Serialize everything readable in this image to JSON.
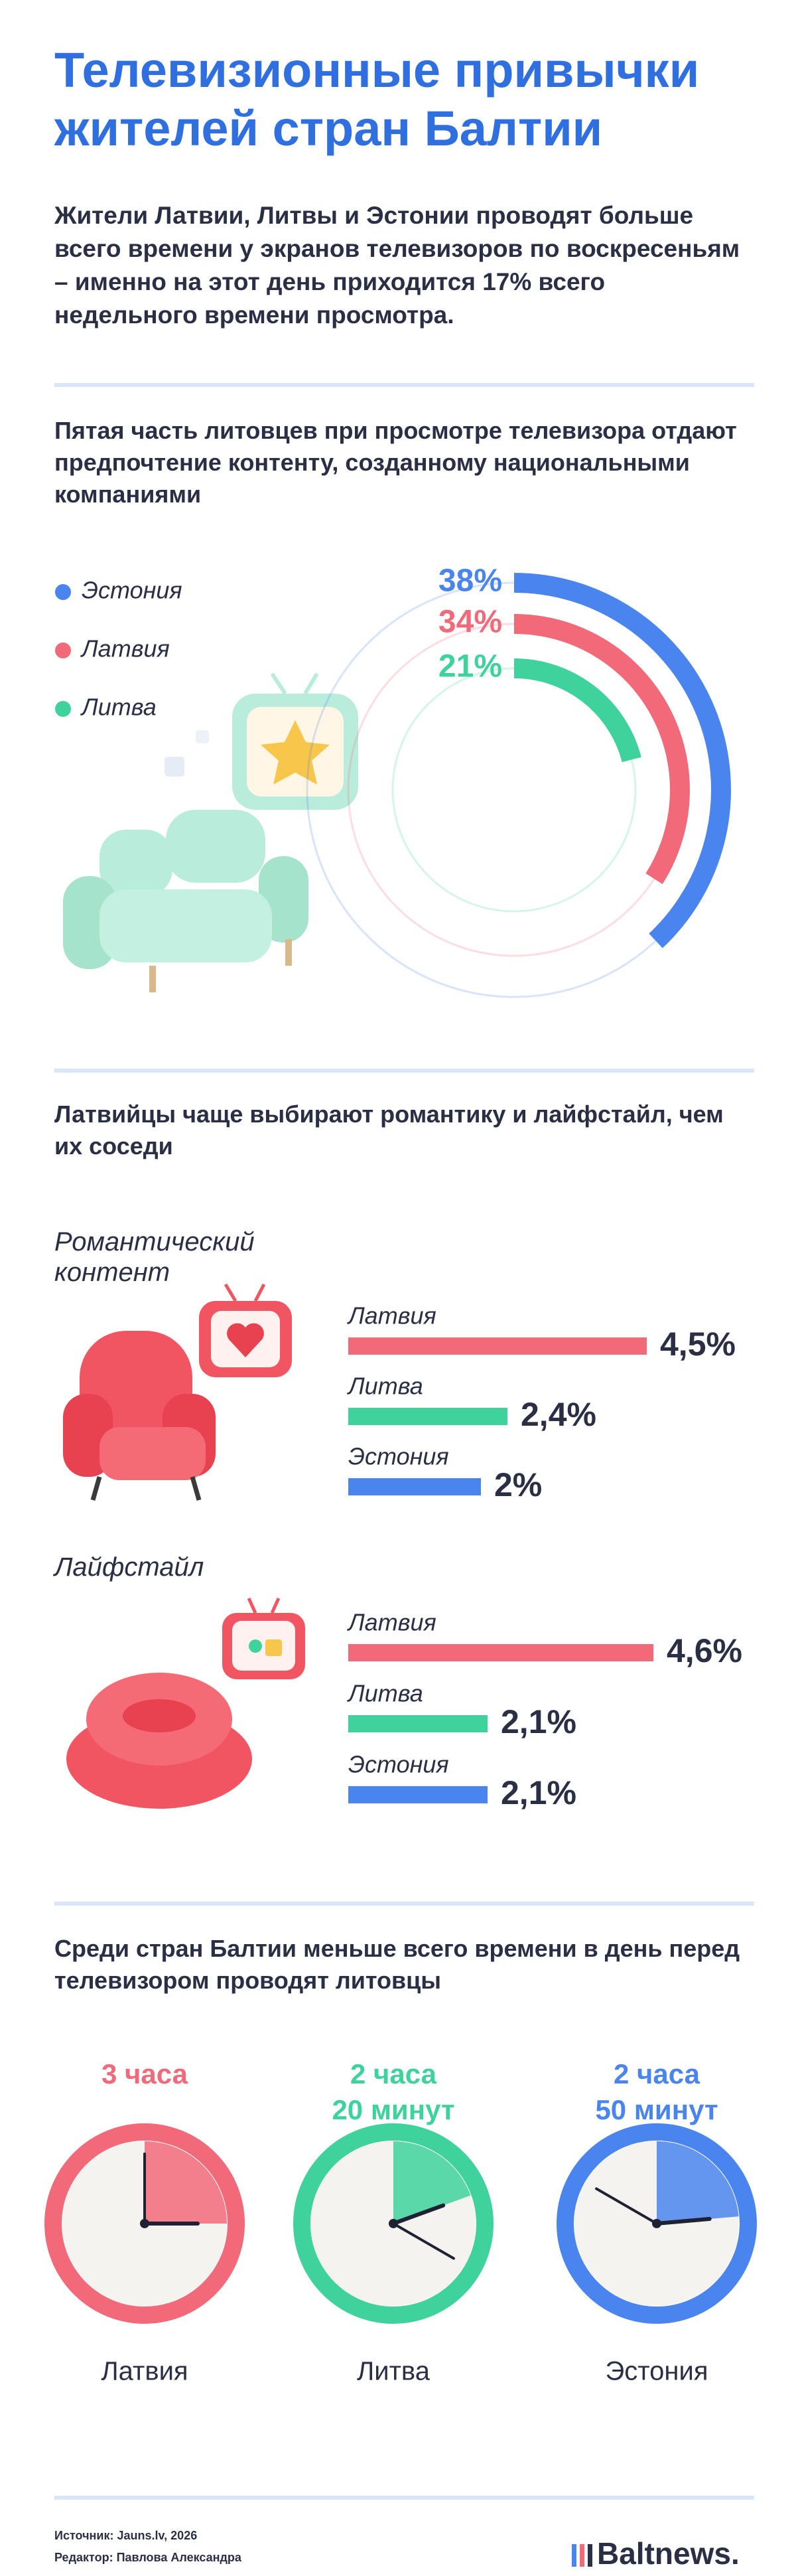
{
  "title": "Телевизионные привычки жителей стран Балтии",
  "intro": "Жители Латвии, Литвы и Эстонии проводят больше всего времени у экранов телевизоров по воскресеньям – именно на этот день приходится 17% всего недельного времени просмотра.",
  "chart_data": [
    {
      "type": "radial",
      "title": "Пятая часть литовцев при просмотре телевизора отдают предпочтение контенту, созданному национальными компаниями",
      "categories": [
        "Эстония",
        "Латвия",
        "Литва"
      ],
      "values": [
        38,
        34,
        21
      ],
      "value_labels": [
        "38%",
        "34%",
        "21%"
      ],
      "colors": [
        "#4a84ee",
        "#f2697a",
        "#3fd29d"
      ],
      "ylim": [
        0,
        100
      ]
    },
    {
      "type": "bar",
      "title": "Латвийцы чаще выбирают романтику и лайфстайл, чем их соседи",
      "subtitle": "Романтический контент",
      "categories": [
        "Латвия",
        "Литва",
        "Эстония"
      ],
      "values": [
        4.5,
        2.4,
        2
      ],
      "value_labels": [
        "4,5%",
        "2,4%",
        "2%"
      ],
      "colors": [
        "#f2697a",
        "#3fd29d",
        "#4a84ee"
      ],
      "xlim": [
        0,
        5
      ]
    },
    {
      "type": "bar",
      "subtitle": "Лайфстайл",
      "categories": [
        "Латвия",
        "Литва",
        "Эстония"
      ],
      "values": [
        4.6,
        2.1,
        2.1
      ],
      "value_labels": [
        "4,6%",
        "2,1%",
        "2,1%"
      ],
      "colors": [
        "#f2697a",
        "#3fd29d",
        "#4a84ee"
      ],
      "xlim": [
        0,
        5
      ]
    },
    {
      "type": "clock",
      "title": "Среди стран Балтии меньше всего времени в день перед телевизором проводят литовцы",
      "categories": [
        "Латвия",
        "Литва",
        "Эстония"
      ],
      "values": [
        180,
        140,
        170
      ],
      "value_labels": [
        "3 часа",
        "2 часа\n20 минут",
        "2 часа\n50 минут"
      ],
      "colors": [
        "#f2697a",
        "#3fd29d",
        "#4a84ee"
      ],
      "ylim": [
        0,
        720
      ]
    }
  ],
  "footer": {
    "source": "Источник: Jauns.lv, 2026",
    "editor": "Редактор: Павлова Александра",
    "logo": "Baltnews."
  }
}
